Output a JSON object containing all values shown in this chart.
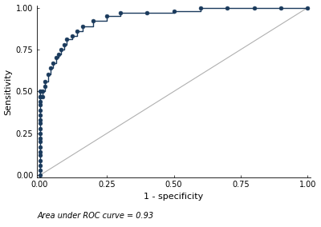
{
  "xlabel": "1 - specificity",
  "ylabel": "Sensitivity",
  "annotation": "Area under ROC curve = 0.93",
  "annotation_fontsize": 7,
  "curve_color": "#1a3a5c",
  "curve_linewidth": 1.0,
  "marker": "o",
  "markersize": 3.5,
  "diagonal_color": "#b0b0b0",
  "diagonal_linewidth": 0.8,
  "background_color": "#ffffff",
  "xlim": [
    -0.01,
    1.01
  ],
  "ylim": [
    -0.01,
    1.01
  ],
  "xticks": [
    0.0,
    0.25,
    0.5,
    0.75,
    1.0
  ],
  "yticks": [
    0.0,
    0.25,
    0.5,
    0.75,
    1.0
  ],
  "tick_label_fontsize": 7,
  "axis_label_fontsize": 8,
  "roc_x": [
    0.0,
    0.0,
    0.0,
    0.0,
    0.0,
    0.0,
    0.0,
    0.0,
    0.0,
    0.0,
    0.0,
    0.0,
    0.0,
    0.0,
    0.0,
    0.0,
    0.0,
    0.0,
    0.0,
    0.0,
    0.01,
    0.01,
    0.02,
    0.02,
    0.03,
    0.04,
    0.05,
    0.06,
    0.07,
    0.08,
    0.09,
    0.1,
    0.12,
    0.14,
    0.16,
    0.2,
    0.25,
    0.3,
    0.4,
    0.5,
    0.6,
    0.7,
    0.8,
    0.9,
    1.0
  ],
  "roc_y": [
    0.0,
    0.03,
    0.06,
    0.09,
    0.12,
    0.14,
    0.17,
    0.2,
    0.22,
    0.25,
    0.28,
    0.31,
    0.33,
    0.36,
    0.39,
    0.42,
    0.44,
    0.47,
    0.5,
    0.47,
    0.47,
    0.5,
    0.53,
    0.56,
    0.6,
    0.64,
    0.67,
    0.7,
    0.72,
    0.75,
    0.78,
    0.81,
    0.83,
    0.86,
    0.89,
    0.92,
    0.95,
    0.97,
    0.97,
    0.98,
    1.0,
    1.0,
    1.0,
    1.0,
    1.0
  ]
}
